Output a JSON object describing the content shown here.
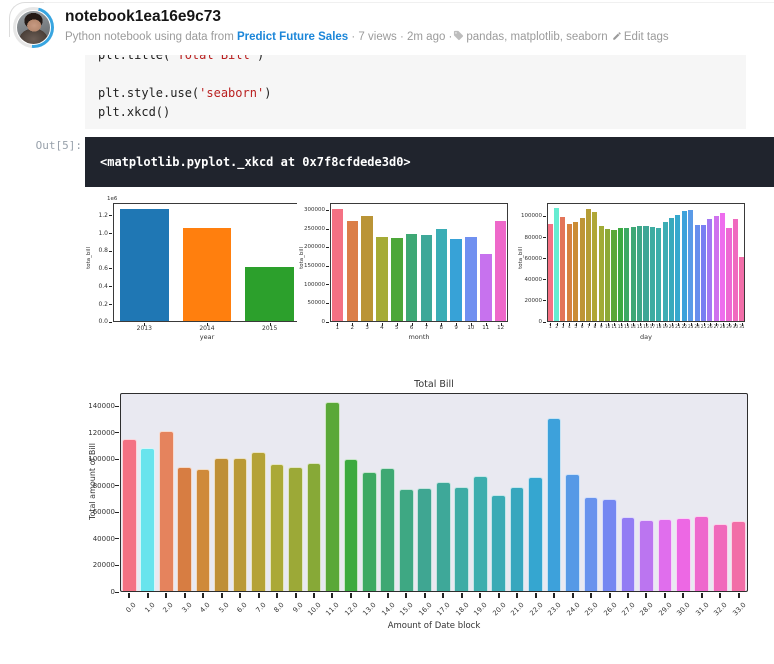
{
  "header": {
    "title": "notebook1ea16e9c73",
    "subtitle_prefix": "Python notebook using data from",
    "dataset_link": "Predict Future Sales",
    "views_and_age": "· 7 views · 2m ago ·",
    "tags": "pandas, matplotlib, seaborn",
    "edit_tags_label": "Edit tags"
  },
  "code_cell": {
    "lines": [
      {
        "segments": [
          {
            "t": "code",
            "v": "plt.title("
          },
          {
            "t": "str",
            "v": "'Total Bill'"
          },
          {
            "t": "code",
            "v": ")"
          }
        ]
      },
      {
        "segments": []
      },
      {
        "segments": [
          {
            "t": "code",
            "v": "plt.style.use("
          },
          {
            "t": "str",
            "v": "'seaborn'"
          },
          {
            "t": "code",
            "v": ")"
          }
        ]
      },
      {
        "segments": [
          {
            "t": "code",
            "v": "plt.xkcd()"
          }
        ]
      }
    ]
  },
  "output": {
    "label": "Out[5]:",
    "text": "<matplotlib.pyplot._xkcd at 0x7f8cfdede3d0>"
  },
  "colors": {
    "link": "#1b86d9",
    "accent_ring": "#38a5e0",
    "output_bg": "#20242d",
    "output_text": "#ffffff",
    "code_bg": "#f6f6f6",
    "code_text": "#212121",
    "code_string": "#ba2121",
    "meta_text": "#9b9b9b",
    "prompt_text": "#98a1ab",
    "big_plot_bg": "#e9e9f1",
    "year_palette_1": "#1f77b4",
    "year_palette_2": "#ff7f0e",
    "year_palette_3": "#2ca02c"
  },
  "chart_data": [
    {
      "id": "year",
      "type": "bar",
      "categories": [
        "2013",
        "2014",
        "2015"
      ],
      "values": [
        1270000,
        1055000,
        620000
      ],
      "title": "",
      "xlabel": "year",
      "ylabel": "tota_bill",
      "ylim": [
        0,
        1340000
      ],
      "yticks": [
        0,
        200000,
        400000,
        600000,
        800000,
        1000000,
        1200000
      ],
      "ytick_labels": [
        "0.0",
        "0.2",
        "0.4",
        "0.6",
        "0.8",
        "1.0",
        "1.2"
      ],
      "offset_text": "1e6",
      "palette": [
        "#1f77b4",
        "#ff7f0e",
        "#2ca02c"
      ],
      "grid": false,
      "legend": "none"
    },
    {
      "id": "month",
      "type": "bar",
      "categories": [
        "1",
        "2",
        "3",
        "4",
        "5",
        "6",
        "7",
        "8",
        "9",
        "10",
        "11",
        "12"
      ],
      "values": [
        305000,
        272000,
        286000,
        228000,
        225000,
        237000,
        233000,
        251000,
        222000,
        228000,
        182000,
        271000
      ],
      "title": "",
      "xlabel": "month",
      "ylabel": "tota_bill",
      "ylim": [
        0,
        320000
      ],
      "yticks": [
        0,
        50000,
        100000,
        150000,
        200000,
        250000,
        300000
      ],
      "ytick_labels": [
        "0",
        "50000",
        "100000",
        "150000",
        "200000",
        "250000",
        "300000"
      ],
      "palette": "husl",
      "grid": false,
      "legend": "none"
    },
    {
      "id": "day",
      "type": "bar",
      "categories": [
        "1",
        "2",
        "3",
        "4",
        "5",
        "6",
        "7",
        "8",
        "9",
        "10",
        "11",
        "12",
        "13",
        "14",
        "15",
        "16",
        "17",
        "18",
        "19",
        "20",
        "21",
        "22",
        "23",
        "24",
        "25",
        "26",
        "27",
        "28",
        "29",
        "30",
        "31"
      ],
      "values": [
        93000,
        108000,
        100000,
        93000,
        95000,
        98500,
        107000,
        104000,
        91000,
        88500,
        87500,
        89500,
        89500,
        90500,
        91500,
        91500,
        90500,
        89000,
        94500,
        98500,
        101500,
        105000,
        106000,
        92500,
        92500,
        97500,
        101000,
        103500,
        89500,
        98000,
        61500
      ],
      "title": "",
      "xlabel": "day",
      "ylabel": "tota_bill",
      "ylim": [
        0,
        113000
      ],
      "yticks": [
        0,
        20000,
        40000,
        60000,
        80000,
        100000
      ],
      "ytick_labels": [
        "0",
        "20000",
        "40000",
        "60000",
        "80000",
        "100000"
      ],
      "palette": "husl",
      "grid": false,
      "legend": "none"
    },
    {
      "id": "total_bill",
      "type": "bar",
      "categories": [
        "0.0",
        "1.0",
        "2.0",
        "3.0",
        "4.0",
        "5.0",
        "6.0",
        "7.0",
        "8.0",
        "9.0",
        "10.0",
        "11.0",
        "12.0",
        "13.0",
        "14.0",
        "15.0",
        "16.0",
        "17.0",
        "18.0",
        "19.0",
        "20.0",
        "21.0",
        "22.0",
        "23.0",
        "24.0",
        "25.0",
        "26.0",
        "27.0",
        "28.0",
        "29.0",
        "30.0",
        "31.0",
        "32.0",
        "33.0"
      ],
      "values": [
        115500,
        108500,
        121000,
        94500,
        92500,
        101000,
        101200,
        105200,
        96500,
        94500,
        97300,
        143500,
        100000,
        90500,
        93500,
        77800,
        78500,
        82800,
        79000,
        87300,
        72800,
        79500,
        86500,
        131000,
        89000,
        71500,
        69800,
        56800,
        54500,
        55000,
        55500,
        57200,
        51000,
        53500
      ],
      "title": "Total Bill",
      "xlabel": "Amount of Date block",
      "ylabel": "Total amount of Bill",
      "ylim": [
        0,
        150000
      ],
      "yticks": [
        0,
        20000,
        40000,
        60000,
        80000,
        100000,
        120000,
        140000
      ],
      "ytick_labels": [
        "0",
        "20000",
        "40000",
        "60000",
        "80000",
        "100000",
        "120000",
        "140000"
      ],
      "palette": "husl",
      "plot_bg": "#e9e9f1",
      "style": "xkcd",
      "grid": false,
      "legend": "none"
    }
  ]
}
